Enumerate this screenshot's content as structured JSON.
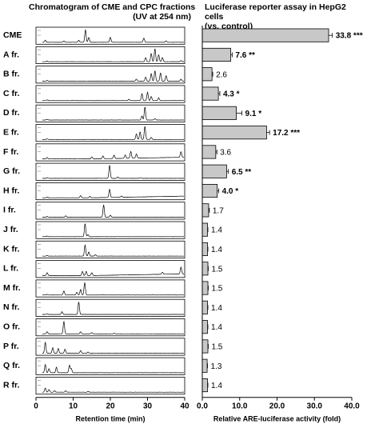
{
  "titles": {
    "left_line1": "Chromatogram  of CME and CPC fractions",
    "left_line2": "(UV at 254 nm)",
    "right_line1": "Luciferase reporter assay in HepG2 cells",
    "right_line2": "(vs. control)"
  },
  "chromatogram": {
    "xlabel": "Retention time (min)",
    "xticks": [
      "0",
      "10",
      "20",
      "30",
      "40"
    ],
    "xlim": [
      0,
      40
    ]
  },
  "colors": {
    "bar_fill": "#c8c8c8",
    "stroke": "#000000"
  },
  "chart_data": {
    "type": "bar",
    "orientation": "horizontal",
    "categories": [
      "CME",
      "A fr.",
      "B fr.",
      "C fr.",
      "D fr.",
      "E fr.",
      "F fr.",
      "G fr.",
      "H fr.",
      "I fr.",
      "J fr.",
      "K fr.",
      "L fr.",
      "M fr.",
      "N fr.",
      "O fr.",
      "P fr.",
      "Q fr.",
      "R fr."
    ],
    "values": [
      33.8,
      7.6,
      2.6,
      4.3,
      9.1,
      17.2,
      3.6,
      6.5,
      4.0,
      1.7,
      1.4,
      1.4,
      1.5,
      1.5,
      1.4,
      1.4,
      1.5,
      1.3,
      1.4
    ],
    "errors": [
      1.0,
      0.4,
      0.2,
      0.4,
      1.5,
      0.8,
      0.3,
      0.5,
      0.4,
      0.2,
      0.1,
      0.1,
      0.1,
      0.1,
      0.1,
      0.1,
      0.1,
      0.1,
      0.1
    ],
    "significance": [
      "***",
      "**",
      "",
      "*",
      "*",
      "***",
      "",
      "**",
      "*",
      "",
      "",
      "",
      "",
      "",
      "",
      "",
      "",
      "",
      ""
    ],
    "value_labels": [
      "33.8",
      "7.6",
      "2.6",
      "4.3",
      "9.1",
      "17.2",
      "3.6",
      "6.5",
      "4.0",
      "1.7",
      "1.4",
      "1.4",
      "1.5",
      "1.5",
      "1.4",
      "1.4",
      "1.5",
      "1.3",
      "1.4"
    ],
    "xlabel": "Relative ARE-luciferase  activity (fold)",
    "xticks": [
      "0.0",
      "10.0",
      "20.0",
      "30.0",
      "40.0"
    ],
    "xlim": [
      0,
      40
    ]
  }
}
